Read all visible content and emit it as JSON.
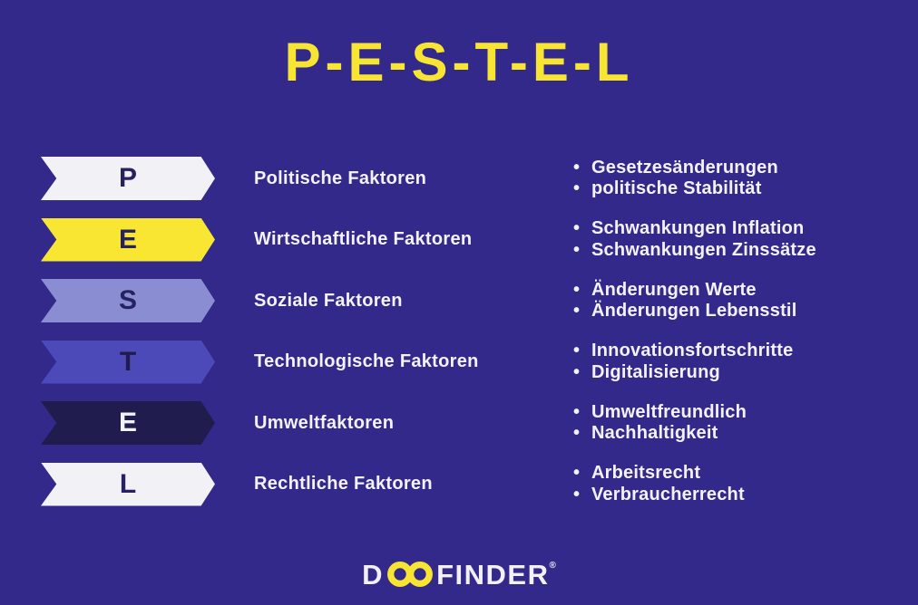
{
  "title": "P-E-S-T-E-L",
  "colors": {
    "background": "#32298b",
    "title_yellow": "#f7e433",
    "text_white": "#f4f2f8",
    "arrow_white": "#f2f1f6",
    "arrow_yellow": "#f8e632",
    "arrow_light_purple": "#8b8dd3",
    "arrow_medium_purple": "#4c4ab9",
    "arrow_dark_navy": "#201d4e",
    "letter_navy": "#262262"
  },
  "rows": [
    {
      "letter": "P",
      "arrow_color": "#f2f1f6",
      "letter_color": "#262262",
      "label": "Politische Faktoren",
      "bullets": [
        "Gesetzesänderungen",
        "politische Stabilität"
      ]
    },
    {
      "letter": "E",
      "arrow_color": "#f8e632",
      "letter_color": "#262262",
      "label": "Wirtschaftliche Faktoren",
      "bullets": [
        "Schwankungen Inflation",
        "Schwankungen Zinssätze"
      ]
    },
    {
      "letter": "S",
      "arrow_color": "#8b8dd3",
      "letter_color": "#262262",
      "label": "Soziale Faktoren",
      "bullets": [
        "Änderungen Werte",
        "Änderungen Lebensstil"
      ]
    },
    {
      "letter": "T",
      "arrow_color": "#4c4ab9",
      "letter_color": "#1f1c4d",
      "label": "Technologische Faktoren",
      "bullets": [
        "Innovationsfortschritte",
        "Digitalisierung"
      ]
    },
    {
      "letter": "E",
      "arrow_color": "#201d4e",
      "letter_color": "#f2f1f6",
      "label": "Umweltfaktoren",
      "bullets": [
        "Umweltfreundlich",
        "Nachhaltigkeit"
      ]
    },
    {
      "letter": "L",
      "arrow_color": "#f2f1f6",
      "letter_color": "#262262",
      "label": "Rechtliche Faktoren",
      "bullets": [
        "Arbeitsrecht",
        "Verbraucherrecht"
      ]
    }
  ],
  "footer": {
    "logo_prefix": "D",
    "logo_suffix": "FINDER",
    "trademark": "®"
  }
}
